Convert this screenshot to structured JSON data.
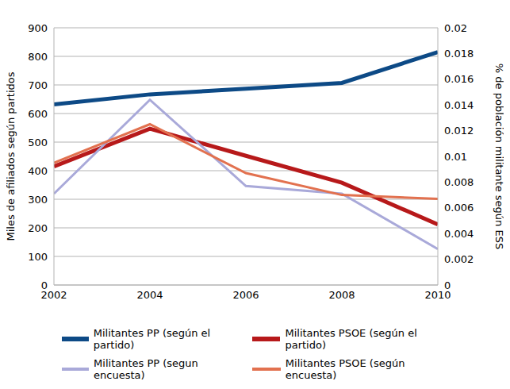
{
  "chart_data": {
    "type": "line",
    "x": [
      2002,
      2004,
      2006,
      2008,
      2010
    ],
    "xlim": [
      2002,
      2010
    ],
    "xticks": [
      2002,
      2004,
      2006,
      2008,
      2010
    ],
    "ylabel": "Miles de afiliados según partidos",
    "y2label": "% de población militante según ESS",
    "ylim": [
      0,
      900
    ],
    "yticks": [
      0,
      100,
      200,
      300,
      400,
      500,
      600,
      700,
      800,
      900
    ],
    "y2lim": [
      0,
      0.02
    ],
    "y2ticks": [
      0,
      0.002,
      0.004,
      0.006,
      0.008,
      0.01,
      0.012,
      0.014,
      0.016,
      0.018,
      0.02
    ],
    "grid": true,
    "legend": "bottom",
    "series": [
      {
        "name": "Militantes PP (según el partido)",
        "color": "#0d4a86",
        "values": [
          632,
          667,
          687,
          707,
          815
        ]
      },
      {
        "name": "Militantes PSOE (según el partido)",
        "color": "#b7191a",
        "values": [
          415,
          547,
          452,
          358,
          212
        ]
      },
      {
        "name": "Militantes PP (segun encuesta)",
        "color": "#a9a9d9",
        "axis": "y2",
        "values": [
          0.0071,
          0.0144,
          0.0077,
          0.0071,
          0.0028
        ]
      },
      {
        "name": "Militantes PSOE (según encuesta)",
        "color": "#e2714f",
        "axis": "y2",
        "values": [
          0.0095,
          0.0125,
          0.0087,
          0.007,
          0.0067
        ]
      }
    ]
  }
}
